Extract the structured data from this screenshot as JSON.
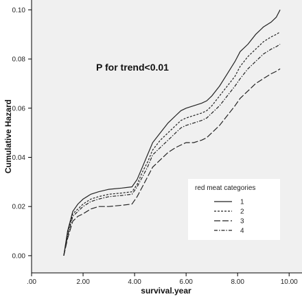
{
  "chart_data": {
    "type": "line",
    "xlabel": "survival.year",
    "ylabel": "Cumulative Hazard",
    "annotation": "P for trend<0.01",
    "xlim": [
      0,
      10.5
    ],
    "ylim": [
      -0.007,
      0.104
    ],
    "x_ticks": [
      0,
      2,
      4,
      6,
      8,
      10
    ],
    "x_tick_labels": [
      ".00",
      "2.00",
      "4.00",
      "6.00",
      "8.00",
      "10.00"
    ],
    "y_ticks": [
      0,
      0.02,
      0.04,
      0.06,
      0.08,
      0.1
    ],
    "y_tick_labels": [
      "0.00",
      "0.02",
      "0.04",
      "0.06",
      "0.08",
      "0.10"
    ],
    "grid": false,
    "plot_background": "#f0f0f0",
    "legend": {
      "title": "red meat categories",
      "placement": "lower-right",
      "entries": [
        "1",
        "2",
        "3",
        "4"
      ]
    },
    "series": [
      {
        "name": "1",
        "style": "solid",
        "x": [
          1.25,
          1.4,
          1.6,
          1.8,
          2.0,
          2.3,
          2.6,
          3.0,
          3.5,
          3.9,
          4.1,
          4.3,
          4.5,
          4.7,
          5.0,
          5.3,
          5.6,
          5.8,
          6.0,
          6.3,
          6.6,
          6.8,
          7.0,
          7.3,
          7.6,
          7.9,
          8.1,
          8.4,
          8.7,
          9.0,
          9.3,
          9.5,
          9.65
        ],
        "y": [
          0.0,
          0.01,
          0.018,
          0.021,
          0.023,
          0.025,
          0.026,
          0.027,
          0.0275,
          0.028,
          0.031,
          0.036,
          0.041,
          0.046,
          0.05,
          0.054,
          0.057,
          0.059,
          0.06,
          0.061,
          0.062,
          0.063,
          0.065,
          0.069,
          0.074,
          0.079,
          0.083,
          0.086,
          0.09,
          0.093,
          0.095,
          0.097,
          0.1
        ]
      },
      {
        "name": "2",
        "style": "short-dash",
        "x": [
          1.25,
          1.4,
          1.6,
          1.8,
          2.0,
          2.3,
          2.6,
          3.0,
          3.5,
          3.9,
          4.1,
          4.3,
          4.5,
          4.7,
          5.0,
          5.3,
          5.6,
          5.8,
          6.0,
          6.3,
          6.6,
          6.8,
          7.0,
          7.3,
          7.6,
          7.9,
          8.1,
          8.4,
          8.7,
          9.0,
          9.3,
          9.5,
          9.65
        ],
        "y": [
          0.0,
          0.009,
          0.017,
          0.019,
          0.021,
          0.023,
          0.024,
          0.025,
          0.0255,
          0.026,
          0.029,
          0.034,
          0.038,
          0.043,
          0.047,
          0.05,
          0.053,
          0.055,
          0.056,
          0.057,
          0.058,
          0.059,
          0.061,
          0.065,
          0.069,
          0.073,
          0.077,
          0.081,
          0.084,
          0.087,
          0.089,
          0.09,
          0.091
        ]
      },
      {
        "name": "4",
        "style": "dash-dot",
        "x": [
          1.25,
          1.4,
          1.6,
          1.8,
          2.0,
          2.3,
          2.6,
          3.0,
          3.5,
          3.9,
          4.1,
          4.3,
          4.5,
          4.7,
          5.0,
          5.3,
          5.6,
          5.8,
          6.0,
          6.3,
          6.6,
          6.8,
          7.0,
          7.3,
          7.6,
          7.9,
          8.1,
          8.4,
          8.7,
          9.0,
          9.3,
          9.5,
          9.65
        ],
        "y": [
          0.0,
          0.008,
          0.016,
          0.018,
          0.02,
          0.022,
          0.023,
          0.024,
          0.0245,
          0.025,
          0.028,
          0.032,
          0.036,
          0.041,
          0.044,
          0.047,
          0.05,
          0.052,
          0.053,
          0.054,
          0.055,
          0.056,
          0.058,
          0.061,
          0.065,
          0.069,
          0.072,
          0.076,
          0.079,
          0.082,
          0.084,
          0.085,
          0.086
        ]
      },
      {
        "name": "3",
        "style": "long-dash",
        "x": [
          1.25,
          1.4,
          1.6,
          1.8,
          2.0,
          2.3,
          2.6,
          3.0,
          3.5,
          3.9,
          4.1,
          4.3,
          4.5,
          4.7,
          5.0,
          5.3,
          5.6,
          5.8,
          6.0,
          6.3,
          6.6,
          6.8,
          7.0,
          7.3,
          7.6,
          7.9,
          8.1,
          8.4,
          8.7,
          9.0,
          9.3,
          9.5,
          9.65
        ],
        "y": [
          0.0,
          0.007,
          0.014,
          0.016,
          0.017,
          0.019,
          0.02,
          0.02,
          0.0205,
          0.021,
          0.024,
          0.028,
          0.032,
          0.036,
          0.039,
          0.042,
          0.044,
          0.045,
          0.046,
          0.046,
          0.047,
          0.048,
          0.05,
          0.053,
          0.057,
          0.061,
          0.064,
          0.067,
          0.07,
          0.072,
          0.074,
          0.075,
          0.076
        ]
      }
    ]
  }
}
